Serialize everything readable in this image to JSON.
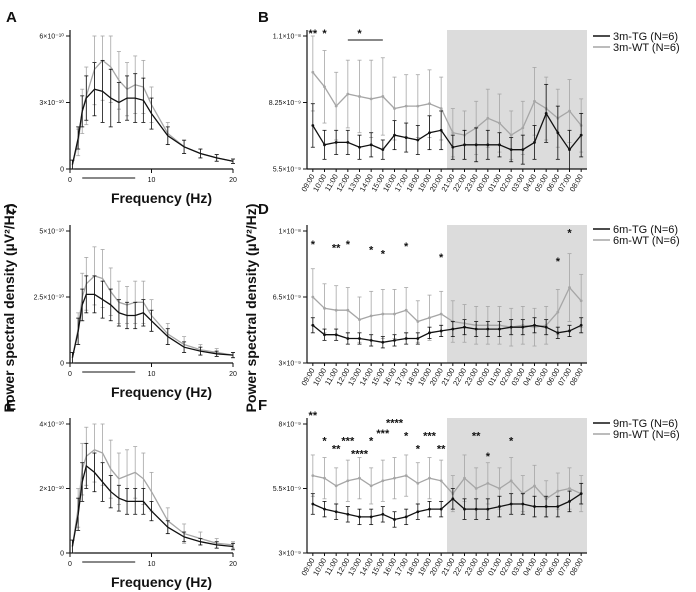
{
  "y_label": "Power spectral density (µV²/Hz)",
  "colors": {
    "tg": "#111111",
    "wt": "#a6a6a6",
    "shade": "#dcdcdc",
    "axis": "#111111"
  },
  "chart_data": [
    {
      "panel": "A",
      "type": "line",
      "xlabel": "Frequency (Hz)",
      "x_ticks": [
        0,
        10,
        20
      ],
      "xlim": [
        0,
        20
      ],
      "y_ticks": [
        "0",
        "3×10⁻¹⁰",
        "6×10⁻¹⁰"
      ],
      "ylim": [
        0,
        6
      ],
      "series": [
        {
          "name": "3m-TG",
          "x": [
            0.3,
            1,
            1.5,
            2,
            3,
            4,
            5,
            6,
            7,
            8,
            9,
            10,
            12,
            14,
            16,
            18,
            20
          ],
          "values": [
            0.2,
            1.4,
            2.6,
            3.2,
            3.6,
            3.5,
            3.2,
            3.0,
            3.2,
            3.2,
            3.1,
            2.5,
            1.5,
            1.0,
            0.7,
            0.5,
            0.35
          ],
          "errors": [
            0.2,
            0.5,
            0.7,
            1.0,
            1.2,
            1.4,
            1.3,
            0.9,
            1.0,
            1.1,
            1.0,
            0.7,
            0.4,
            0.3,
            0.2,
            0.15,
            0.1
          ]
        },
        {
          "name": "3m-WT",
          "x": [
            0.3,
            1,
            1.5,
            2,
            3,
            4,
            5,
            6,
            7,
            8,
            9,
            10,
            12,
            14,
            16,
            18,
            20
          ],
          "values": [
            0.2,
            1.2,
            2.6,
            3.3,
            4.5,
            4.9,
            4.6,
            4.0,
            3.6,
            3.8,
            3.7,
            2.9,
            1.6,
            1.0,
            0.7,
            0.5,
            0.35
          ],
          "errors": [
            0.2,
            0.6,
            1.0,
            1.3,
            1.6,
            1.8,
            1.6,
            1.3,
            1.2,
            1.3,
            1.2,
            0.8,
            0.5,
            0.3,
            0.2,
            0.15,
            0.1
          ]
        }
      ]
    },
    {
      "panel": "B",
      "type": "line",
      "categories": [
        "09:00",
        "10:00",
        "11:00",
        "12:00",
        "13:00",
        "14:00",
        "15:00",
        "16:00",
        "17:00",
        "18:00",
        "19:00",
        "20:00",
        "21:00",
        "22:00",
        "23:00",
        "00:00",
        "01:00",
        "02:00",
        "03:00",
        "04:00",
        "05:00",
        "06:00",
        "07:00",
        "08:00"
      ],
      "y_ticks": [
        "5.5×10⁻⁹",
        "8.25×10⁻⁹",
        "1.1×10⁻⁸"
      ],
      "ylim": [
        5.5,
        11
      ],
      "dark_start_index": 12,
      "series": [
        {
          "name": "3m-TG (N=6)",
          "values": [
            7.3,
            6.5,
            6.6,
            6.6,
            6.4,
            6.5,
            6.3,
            6.9,
            6.8,
            6.7,
            7.0,
            7.1,
            6.4,
            6.5,
            6.5,
            6.5,
            6.5,
            6.3,
            6.3,
            6.6,
            7.8,
            7.0,
            6.3,
            6.9
          ],
          "errors": [
            0.9,
            0.6,
            0.5,
            0.5,
            0.5,
            0.5,
            0.4,
            0.6,
            0.6,
            0.6,
            0.7,
            0.8,
            0.5,
            0.6,
            0.7,
            0.6,
            0.5,
            0.5,
            0.6,
            0.7,
            1.2,
            1.1,
            0.8,
            0.9
          ]
        },
        {
          "name": "3m-WT (N=6)",
          "values": [
            9.5,
            8.9,
            8.1,
            8.6,
            8.5,
            8.4,
            8.5,
            8.0,
            8.1,
            8.1,
            8.2,
            8.0,
            7.0,
            6.9,
            7.2,
            7.6,
            7.4,
            6.9,
            7.2,
            8.3,
            8.0,
            7.6,
            7.9,
            7.3
          ],
          "errors": [
            1.6,
            1.5,
            1.4,
            1.4,
            1.5,
            1.6,
            1.6,
            1.3,
            1.3,
            1.3,
            1.4,
            1.3,
            1.0,
            1.0,
            1.1,
            1.2,
            1.2,
            1.0,
            1.1,
            1.4,
            1.3,
            1.2,
            1.3,
            1.1
          ]
        }
      ],
      "annotations": [
        {
          "text": "**",
          "index": 0,
          "y": 10.95
        },
        {
          "text": "*",
          "index": 1,
          "y": 10.95
        },
        {
          "text": "*",
          "index": 4,
          "y": 10.95
        }
      ]
    },
    {
      "panel": "C",
      "type": "line",
      "xlabel": "Frequency (Hz)",
      "x_ticks": [
        0,
        10,
        20
      ],
      "xlim": [
        0,
        20
      ],
      "y_ticks": [
        "0",
        "2.5×10⁻¹⁰",
        "5×10⁻¹⁰"
      ],
      "ylim": [
        0,
        5
      ],
      "series": [
        {
          "name": "6m-TG",
          "x": [
            0.3,
            1,
            1.5,
            2,
            3,
            4,
            5,
            6,
            7,
            8,
            9,
            10,
            12,
            14,
            16,
            18,
            20
          ],
          "values": [
            0.2,
            1.2,
            2.2,
            2.6,
            2.6,
            2.4,
            2.2,
            1.9,
            1.8,
            1.8,
            1.9,
            1.6,
            1.0,
            0.6,
            0.45,
            0.35,
            0.3
          ],
          "errors": [
            0.2,
            0.5,
            0.6,
            0.7,
            0.7,
            0.7,
            0.6,
            0.5,
            0.5,
            0.5,
            0.5,
            0.4,
            0.3,
            0.2,
            0.15,
            0.1,
            0.1
          ]
        },
        {
          "name": "6m-WT",
          "x": [
            0.3,
            1,
            1.5,
            2,
            3,
            4,
            5,
            6,
            7,
            8,
            9,
            10,
            12,
            14,
            16,
            18,
            20
          ],
          "values": [
            0.2,
            1.3,
            2.5,
            3.0,
            3.3,
            3.2,
            2.7,
            2.3,
            2.2,
            2.3,
            2.3,
            1.8,
            1.1,
            0.7,
            0.5,
            0.4,
            0.3
          ],
          "errors": [
            0.2,
            0.6,
            0.9,
            1.0,
            1.1,
            1.1,
            0.9,
            0.8,
            0.7,
            0.8,
            0.8,
            0.6,
            0.4,
            0.3,
            0.2,
            0.15,
            0.1
          ]
        }
      ]
    },
    {
      "panel": "D",
      "type": "line",
      "categories": [
        "09:00",
        "10:00",
        "11:00",
        "12:00",
        "13:00",
        "14:00",
        "15:00",
        "16:00",
        "17:00",
        "18:00",
        "19:00",
        "20:00",
        "21:00",
        "22:00",
        "23:00",
        "00:00",
        "01:00",
        "02:00",
        "03:00",
        "04:00",
        "05:00",
        "06:00",
        "07:00",
        "08:00"
      ],
      "y_ticks": [
        "3×10⁻⁹",
        "6.5×10⁻⁹",
        "1×10⁻⁸"
      ],
      "ylim": [
        3,
        10
      ],
      "dark_start_index": 12,
      "series": [
        {
          "name": "6m-TG (N=6)",
          "values": [
            5.0,
            4.5,
            4.5,
            4.3,
            4.3,
            4.2,
            4.1,
            4.2,
            4.3,
            4.3,
            4.6,
            4.7,
            4.8,
            4.9,
            4.8,
            4.8,
            4.8,
            4.9,
            4.9,
            5.0,
            4.9,
            4.6,
            4.7,
            5.0
          ],
          "errors": [
            0.4,
            0.3,
            0.3,
            0.3,
            0.3,
            0.3,
            0.3,
            0.3,
            0.3,
            0.3,
            0.3,
            0.3,
            0.4,
            0.4,
            0.4,
            0.4,
            0.4,
            0.4,
            0.4,
            0.4,
            0.4,
            0.3,
            0.3,
            0.4
          ]
        },
        {
          "name": "6m-WT (N=6)",
          "values": [
            6.5,
            5.9,
            5.8,
            5.8,
            5.3,
            5.5,
            5.6,
            5.6,
            5.8,
            5.2,
            5.4,
            5.6,
            5.2,
            5.1,
            5.0,
            5.0,
            5.0,
            4.9,
            5.0,
            4.9,
            5.0,
            5.7,
            7.0,
            6.3
          ],
          "errors": [
            1.5,
            1.3,
            1.3,
            1.2,
            1.2,
            1.3,
            1.3,
            1.3,
            1.2,
            1.1,
            1.2,
            1.2,
            1.1,
            1.0,
            1.0,
            1.0,
            1.0,
            1.0,
            1.0,
            1.0,
            1.0,
            1.2,
            1.8,
            1.4
          ]
        }
      ],
      "annotations": [
        {
          "text": "*",
          "index": 0,
          "y": 9.1
        },
        {
          "text": "**",
          "index": 2,
          "y": 8.9
        },
        {
          "text": "*",
          "index": 3,
          "y": 9.1
        },
        {
          "text": "*",
          "index": 5,
          "y": 8.8
        },
        {
          "text": "*",
          "index": 6,
          "y": 8.6
        },
        {
          "text": "*",
          "index": 8,
          "y": 9.0
        },
        {
          "text": "*",
          "index": 11,
          "y": 8.4
        },
        {
          "text": "*",
          "index": 21,
          "y": 8.2
        },
        {
          "text": "*",
          "index": 22,
          "y": 9.7
        }
      ]
    },
    {
      "panel": "E",
      "type": "line",
      "xlabel": "Frequency (Hz)",
      "x_ticks": [
        0,
        10,
        20
      ],
      "xlim": [
        0,
        20
      ],
      "y_ticks": [
        "0",
        "2×10⁻¹⁰",
        "4×10⁻¹⁰"
      ],
      "ylim": [
        0,
        4
      ],
      "series": [
        {
          "name": "9m-TG",
          "x": [
            0.3,
            1,
            1.5,
            2,
            3,
            4,
            5,
            6,
            7,
            8,
            9,
            10,
            12,
            14,
            16,
            18,
            20
          ],
          "values": [
            0.2,
            1.2,
            2.2,
            2.7,
            2.5,
            2.2,
            1.9,
            1.7,
            1.6,
            1.6,
            1.6,
            1.3,
            0.8,
            0.5,
            0.35,
            0.25,
            0.2
          ],
          "errors": [
            0.2,
            0.5,
            0.6,
            0.7,
            0.6,
            0.6,
            0.5,
            0.4,
            0.4,
            0.4,
            0.4,
            0.3,
            0.2,
            0.15,
            0.1,
            0.1,
            0.1
          ]
        },
        {
          "name": "9m-WT",
          "x": [
            0.3,
            1,
            1.5,
            2,
            3,
            4,
            5,
            6,
            7,
            8,
            9,
            10,
            12,
            14,
            16,
            18,
            20
          ],
          "values": [
            0.2,
            1.4,
            2.6,
            3.0,
            3.2,
            3.1,
            2.6,
            2.3,
            2.4,
            2.5,
            2.3,
            1.9,
            1.0,
            0.6,
            0.45,
            0.3,
            0.25
          ],
          "errors": [
            0.2,
            0.6,
            0.8,
            0.9,
            1.0,
            1.0,
            0.9,
            0.8,
            0.8,
            0.8,
            0.8,
            0.6,
            0.4,
            0.3,
            0.2,
            0.15,
            0.1
          ]
        }
      ]
    },
    {
      "panel": "F",
      "type": "line",
      "categories": [
        "09:00",
        "10:00",
        "11:00",
        "12:00",
        "13:00",
        "14:00",
        "15:00",
        "16:00",
        "17:00",
        "18:00",
        "19:00",
        "20:00",
        "21:00",
        "22:00",
        "23:00",
        "00:00",
        "01:00",
        "02:00",
        "03:00",
        "04:00",
        "05:00",
        "06:00",
        "07:00",
        "08:00"
      ],
      "y_ticks": [
        "3×10⁻⁹",
        "5.5×10⁻⁹",
        "8×10⁻⁹"
      ],
      "ylim": [
        3,
        8
      ],
      "dark_start_index": 12,
      "series": [
        {
          "name": "9m-TG (N=6)",
          "values": [
            4.9,
            4.7,
            4.6,
            4.5,
            4.4,
            4.4,
            4.5,
            4.3,
            4.4,
            4.6,
            4.7,
            4.7,
            5.1,
            4.7,
            4.7,
            4.7,
            4.8,
            4.9,
            4.9,
            4.8,
            4.8,
            4.8,
            5.0,
            5.3
          ],
          "errors": [
            0.4,
            0.3,
            0.3,
            0.3,
            0.3,
            0.3,
            0.3,
            0.3,
            0.3,
            0.3,
            0.3,
            0.3,
            0.4,
            0.4,
            0.4,
            0.4,
            0.4,
            0.4,
            0.4,
            0.4,
            0.4,
            0.4,
            0.4,
            0.4
          ]
        },
        {
          "name": "9m-WT (N=6)",
          "values": [
            6.0,
            5.9,
            5.6,
            5.8,
            5.9,
            5.6,
            5.8,
            5.9,
            6.0,
            5.7,
            5.9,
            5.8,
            5.3,
            5.9,
            5.5,
            5.7,
            5.5,
            5.8,
            5.3,
            5.6,
            5.1,
            5.4,
            5.5,
            5.3
          ],
          "errors": [
            0.8,
            0.8,
            0.7,
            0.8,
            0.8,
            0.7,
            0.8,
            0.8,
            0.8,
            0.8,
            0.8,
            0.8,
            0.7,
            0.9,
            0.8,
            0.8,
            0.8,
            0.9,
            0.7,
            0.8,
            0.7,
            0.7,
            0.8,
            0.7
          ]
        }
      ],
      "annotations": [
        {
          "text": "**",
          "index": 0,
          "y": 8.2
        },
        {
          "text": "*",
          "index": 1,
          "y": 7.2
        },
        {
          "text": "**",
          "index": 2,
          "y": 6.9
        },
        {
          "text": "***",
          "index": 3,
          "y": 7.2
        },
        {
          "text": "****",
          "index": 4,
          "y": 6.7
        },
        {
          "text": "*",
          "index": 5,
          "y": 7.2
        },
        {
          "text": "***",
          "index": 6,
          "y": 7.5
        },
        {
          "text": "****",
          "index": 7,
          "y": 7.9
        },
        {
          "text": "*",
          "index": 8,
          "y": 7.4
        },
        {
          "text": "*",
          "index": 9,
          "y": 6.9
        },
        {
          "text": "***",
          "index": 10,
          "y": 7.4
        },
        {
          "text": "**",
          "index": 11,
          "y": 6.9
        },
        {
          "text": "**",
          "index": 14,
          "y": 7.4
        },
        {
          "text": "*",
          "index": 15,
          "y": 6.6
        },
        {
          "text": "*",
          "index": 17,
          "y": 7.2
        }
      ]
    }
  ]
}
